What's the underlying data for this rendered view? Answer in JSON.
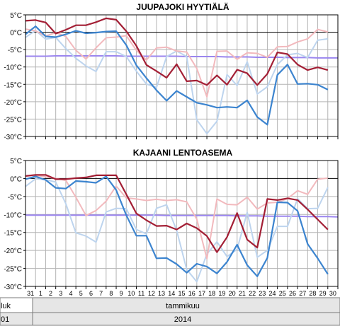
{
  "chart_data": [
    {
      "type": "line",
      "title": "JUUPAJOKI HYYTIÄLÄ",
      "ylim": [
        -30,
        5
      ],
      "yticks": [
        "5°C",
        "0°C",
        "-5°C",
        "-10°C",
        "-15°C",
        "-20°C",
        "-25°C",
        "-30°C"
      ],
      "ytick_values": [
        5,
        0,
        -5,
        -10,
        -15,
        -20,
        -25,
        -30
      ],
      "x": [
        0,
        1,
        2,
        3,
        4,
        5,
        6,
        7,
        8,
        9,
        10,
        11,
        12,
        13,
        14,
        15,
        16,
        17,
        18,
        19,
        20,
        21,
        22,
        23,
        24,
        25,
        26,
        27,
        28,
        29,
        30,
        31
      ],
      "series": [
        {
          "color": "#a31f35",
          "values": [
            3.3,
            3.5,
            2.8,
            -0.4,
            0.7,
            2.0,
            2.0,
            2.9,
            4.0,
            3.6,
            0.3,
            -3.9,
            -9.4,
            -11.2,
            -13.1,
            -9.2,
            -14.1,
            -13.9,
            -15.2,
            -12.4,
            -15.1,
            -10.8,
            -11.8,
            -15.2,
            -12.0,
            -5.8,
            -6.3,
            -9.3,
            -10.9,
            -10.1,
            -10.9,
            null
          ]
        },
        {
          "color": "#3c84cf",
          "values": [
            -0.6,
            1.7,
            -1.2,
            -1.4,
            -0.6,
            0.4,
            -0.3,
            -0.1,
            0.2,
            0.3,
            -3.7,
            -9.5,
            -13.2,
            -16.7,
            -19.7,
            -16.9,
            -18.6,
            -20.3,
            -20.9,
            -21.7,
            -21.5,
            -21.7,
            -19.6,
            -24.4,
            -26.6,
            -12.3,
            -9.3,
            -14.9,
            -14.8,
            -15.1,
            -16.5,
            null
          ]
        },
        {
          "color": "#f2b9bd",
          "values": [
            0.9,
            0.4,
            -1.1,
            -0.1,
            -1.2,
            -5.2,
            -7.7,
            -4.5,
            -1.6,
            -1.4,
            -1.0,
            -5.2,
            -8.0,
            -4.5,
            -4.3,
            -5.4,
            -5.7,
            -10.4,
            -18.6,
            -5.5,
            -5.4,
            -7.8,
            -5.9,
            -6.1,
            -7.2,
            -4.2,
            -4.1,
            -2.8,
            -1.9,
            0.8,
            0.1,
            null
          ]
        },
        {
          "color": "#bdd4ee",
          "values": [
            -1.5,
            0.5,
            -2.0,
            -1.5,
            -4.7,
            -7.5,
            -9.7,
            -11.3,
            -5.6,
            -5.6,
            -7.0,
            -11.2,
            -14.9,
            -15.9,
            -7.0,
            -5.4,
            -7.0,
            -25.2,
            -29.2,
            -25.6,
            -12.2,
            -15.3,
            -8.5,
            -17.8,
            -15.7,
            -9.3,
            -6.5,
            -6.1,
            -7.3,
            -2.3,
            -1.9,
            null
          ]
        },
        {
          "color": "#9b86ef",
          "values": [
            -6.9,
            -6.9,
            -6.9,
            -6.8,
            -6.8,
            -6.8,
            -6.8,
            -6.8,
            -6.8,
            -6.8,
            -6.9,
            -6.9,
            -6.9,
            -6.9,
            -6.9,
            -6.9,
            -7.0,
            -7.0,
            -7.0,
            -7.0,
            -7.1,
            -7.1,
            -7.1,
            -7.2,
            -7.2,
            -7.2,
            -7.3,
            -7.3,
            -7.3,
            -7.4,
            -7.4,
            -7.4
          ]
        }
      ]
    },
    {
      "type": "line",
      "title": "KAJAANI LENTOASEMA",
      "ylim": [
        -30,
        5
      ],
      "yticks": [
        "5°C",
        "0°C",
        "-5°C",
        "-10°C",
        "-15°C",
        "-20°C",
        "-25°C",
        "-30°C"
      ],
      "ytick_values": [
        5,
        0,
        -5,
        -10,
        -15,
        -20,
        -25,
        -30
      ],
      "x": [
        0,
        1,
        2,
        3,
        4,
        5,
        6,
        7,
        8,
        9,
        10,
        11,
        12,
        13,
        14,
        15,
        16,
        17,
        18,
        19,
        20,
        21,
        22,
        23,
        24,
        25,
        26,
        27,
        28,
        29,
        30,
        31
      ],
      "series": [
        {
          "color": "#a31f35",
          "values": [
            0.7,
            1.0,
            1.0,
            -0.2,
            -0.2,
            0.1,
            0.3,
            0.9,
            0.9,
            0.9,
            -4.4,
            -9.7,
            -11.6,
            -13.2,
            -13.1,
            -14.2,
            -12.5,
            -13.8,
            -16.0,
            -20.5,
            -16.3,
            -9.6,
            -17.0,
            -19.2,
            -5.7,
            -6.0,
            -5.5,
            -6.0,
            -8.6,
            -11.4,
            -14.2,
            null
          ]
        },
        {
          "color": "#3c84cf",
          "values": [
            -0.2,
            0.6,
            -0.4,
            -2.6,
            -2.8,
            -0.7,
            -0.9,
            -1.2,
            0.6,
            -3.2,
            -10.2,
            -15.9,
            -15.9,
            -22.2,
            -22.1,
            -23.8,
            -26.2,
            -23.7,
            -24.5,
            -26.4,
            -23.2,
            -18.4,
            -24.1,
            -27.2,
            -22.1,
            -6.6,
            -6.7,
            -9.0,
            -18.2,
            -22.2,
            -26.6,
            null
          ]
        },
        {
          "color": "#f2b9bd",
          "values": [
            0.7,
            0.9,
            0.5,
            0.0,
            -0.5,
            -5.2,
            -10.3,
            -8.9,
            -6.3,
            -2.1,
            -5.4,
            -5.7,
            -6.1,
            -5.8,
            -6.1,
            -5.9,
            -6.5,
            -11.3,
            -22.3,
            -5.7,
            -7.2,
            -7.3,
            -5.2,
            -8.5,
            -6.8,
            -6.6,
            -5.6,
            -3.4,
            -4.4,
            -0.2,
            0.1,
            null
          ]
        },
        {
          "color": "#bdd4ee",
          "values": [
            -2.2,
            -0.1,
            -0.3,
            -1.0,
            -7.0,
            -15.1,
            -16.0,
            -17.7,
            -9.3,
            -8.3,
            -8.4,
            -14.2,
            -15.4,
            -8.3,
            -7.3,
            -14.4,
            -25.3,
            -28.7,
            -21.0,
            -17.6,
            -21.7,
            -19.7,
            -9.4,
            -21.9,
            -20.0,
            -13.3,
            -13.3,
            -5.6,
            -8.4,
            -8.3,
            -2.5,
            null
          ]
        },
        {
          "color": "#9b86ef",
          "values": [
            -10.2,
            -10.2,
            -10.2,
            -10.2,
            -10.2,
            -10.2,
            -10.2,
            -10.2,
            -10.2,
            -10.2,
            -10.2,
            -10.2,
            -10.2,
            -10.2,
            -10.3,
            -10.3,
            -10.3,
            -10.3,
            -10.3,
            -10.3,
            -10.3,
            -10.4,
            -10.4,
            -10.4,
            -10.5,
            -10.5,
            -10.5,
            -10.5,
            -10.6,
            -10.6,
            -10.6,
            -10.7
          ]
        }
      ]
    }
  ],
  "x_axis": {
    "day_labels": [
      "31",
      "1",
      "2",
      "3",
      "4",
      "5",
      "6",
      "7",
      "8",
      "9",
      "10",
      "11",
      "12",
      "13",
      "14",
      "15",
      "16",
      "17",
      "18",
      "19",
      "20",
      "21",
      "22",
      "23",
      "24",
      "25",
      "26",
      "27",
      "28",
      "29",
      "30"
    ],
    "month_left": "luk",
    "month": "tammikuu",
    "year_left": "01",
    "year": "2014"
  },
  "colors": {
    "zero_line": "#000000",
    "grid": "#b3b3b3",
    "axis": "#000000",
    "band_fill": "#e6e6e6"
  }
}
